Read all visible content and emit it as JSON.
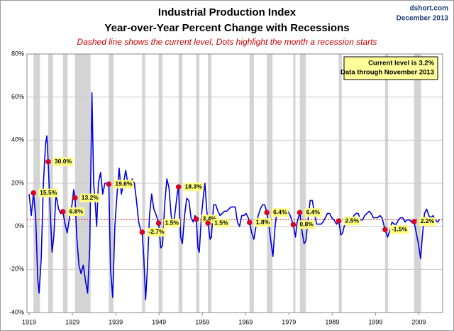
{
  "chart_data": {
    "type": "line",
    "title": "Industrial Production Index",
    "subtitle": "Year-over-Year Percent Change with Recessions",
    "note": "Dashed line shows the current level, Dots highlight the month a recession starts",
    "source": "dshort.com",
    "date": "December 2013",
    "info_box": [
      "Current level is 3.2%",
      "Data through November 2013"
    ],
    "color": "#0000e0",
    "current_level": 3.2,
    "current_level_color": "#e00000",
    "recession_color": "#d4d4d4",
    "dot_color": "#e0002a",
    "label_color": "#ffff80",
    "grid": true,
    "xlim": [
      1918.5,
      2014.5
    ],
    "xticks": [
      1919,
      1929,
      1939,
      1949,
      1959,
      1969,
      1979,
      1989,
      1999,
      2009
    ],
    "ylim": [
      -40,
      80
    ],
    "yticks": [
      {
        "value": -40,
        "label": "-40%"
      },
      {
        "value": -20,
        "label": "-20%"
      },
      {
        "value": 0,
        "label": "0%"
      },
      {
        "value": 20,
        "label": "20%"
      },
      {
        "value": 40,
        "label": "40%"
      },
      {
        "value": 60,
        "label": "60%"
      },
      {
        "value": 80,
        "label": "80%"
      }
    ],
    "recessions": [
      [
        1920.0,
        1921.5
      ],
      [
        1923.4,
        1924.5
      ],
      [
        1926.8,
        1927.9
      ],
      [
        1929.6,
        1933.2
      ],
      [
        1937.4,
        1938.5
      ],
      [
        1945.1,
        1945.8
      ],
      [
        1948.9,
        1949.8
      ],
      [
        1953.5,
        1954.4
      ],
      [
        1957.6,
        1958.3
      ],
      [
        1960.3,
        1961.1
      ],
      [
        1969.9,
        1970.9
      ],
      [
        1973.9,
        1975.2
      ],
      [
        1980.0,
        1980.5
      ],
      [
        1981.5,
        1982.9
      ],
      [
        1990.5,
        1991.2
      ],
      [
        2001.2,
        2001.9
      ],
      [
        2007.9,
        2009.5
      ]
    ],
    "recession_starts": {
      "x": [
        1920.0,
        1923.4,
        1926.8,
        1929.6,
        1937.4,
        1945.1,
        1948.9,
        1953.5,
        1957.6,
        1960.3,
        1969.9,
        1973.9,
        1980.0,
        1981.5,
        1990.5,
        2001.2,
        2007.9
      ],
      "values": [
        15.5,
        30.0,
        6.8,
        13.2,
        19.6,
        -2.7,
        1.5,
        18.3,
        3.4,
        1.5,
        1.8,
        6.4,
        0.8,
        6.4,
        2.5,
        -1.5,
        2.2
      ],
      "value_labels": [
        "15.5%",
        "30.0%",
        "6.8%",
        "13.2%",
        "19.6%",
        "-2.7%",
        "1.5%",
        "18.3%",
        "3.4%",
        "1.5%",
        "1.8%",
        "6.4%",
        "0.8%",
        "6.4%",
        "2.5%",
        "-1.5%",
        "2.2%"
      ]
    },
    "x": [
      1919.0,
      1919.5,
      1920.0,
      1920.5,
      1921.0,
      1921.3,
      1921.8,
      1922.3,
      1922.8,
      1923.1,
      1923.4,
      1923.8,
      1924.3,
      1924.7,
      1925.2,
      1925.8,
      1926.3,
      1926.8,
      1927.3,
      1927.8,
      1928.4,
      1928.9,
      1929.3,
      1929.6,
      1930.0,
      1930.5,
      1931.0,
      1931.5,
      1932.0,
      1932.5,
      1933.0,
      1933.5,
      1933.9,
      1934.3,
      1934.6,
      1935.0,
      1935.5,
      1936.0,
      1936.5,
      1937.0,
      1937.4,
      1937.8,
      1938.3,
      1938.8,
      1939.3,
      1939.8,
      1940.3,
      1940.8,
      1941.3,
      1941.8,
      1942.3,
      1942.8,
      1943.3,
      1943.8,
      1944.3,
      1944.8,
      1945.1,
      1945.5,
      1945.9,
      1946.3,
      1946.8,
      1947.3,
      1947.8,
      1948.4,
      1948.9,
      1949.4,
      1949.8,
      1950.3,
      1950.8,
      1951.3,
      1951.8,
      1952.3,
      1952.8,
      1953.2,
      1953.5,
      1954.0,
      1954.4,
      1954.9,
      1955.4,
      1955.9,
      1956.4,
      1956.9,
      1957.3,
      1957.6,
      1958.0,
      1958.3,
      1958.8,
      1959.3,
      1959.6,
      1960.0,
      1960.3,
      1960.8,
      1961.1,
      1961.6,
      1962.1,
      1962.6,
      1963.1,
      1963.6,
      1964.1,
      1964.6,
      1965.1,
      1965.6,
      1966.1,
      1966.6,
      1967.1,
      1967.6,
      1968.1,
      1968.6,
      1969.1,
      1969.6,
      1969.9,
      1970.4,
      1970.9,
      1971.4,
      1971.9,
      1972.4,
      1972.9,
      1973.4,
      1973.9,
      1974.4,
      1974.9,
      1975.3,
      1975.8,
      1976.3,
      1976.8,
      1977.3,
      1977.8,
      1978.3,
      1978.8,
      1979.3,
      1980.0,
      1980.5,
      1980.9,
      1981.5,
      1982.0,
      1982.5,
      1982.9,
      1983.4,
      1983.9,
      1984.4,
      1984.9,
      1985.4,
      1985.9,
      1986.4,
      1986.9,
      1987.4,
      1987.9,
      1988.4,
      1988.9,
      1989.4,
      1990.0,
      1990.5,
      1991.0,
      1991.4,
      1992.0,
      1992.5,
      1993.0,
      1993.5,
      1994.0,
      1994.5,
      1995.0,
      1995.5,
      1996.0,
      1996.5,
      1997.0,
      1997.5,
      1998.0,
      1998.5,
      1999.0,
      1999.5,
      2000.0,
      2000.5,
      2001.2,
      2001.8,
      2002.3,
      2002.8,
      2003.3,
      2003.8,
      2004.3,
      2004.8,
      2005.3,
      2005.8,
      2006.3,
      2006.8,
      2007.3,
      2007.9,
      2008.4,
      2008.9,
      2009.4,
      2009.8,
      2010.3,
      2010.8,
      2011.3,
      2011.8,
      2012.3,
      2012.8,
      2013.3,
      2013.8
    ],
    "values": [
      15,
      5,
      15.5,
      5,
      -25,
      -31,
      -15,
      20,
      38,
      42,
      30,
      10,
      -12,
      -5,
      15,
      8,
      6,
      6.8,
      1,
      -3,
      5,
      10,
      17,
      13.2,
      -5,
      -18,
      -22,
      -18,
      -25,
      -31,
      -10,
      62,
      20,
      10,
      0,
      20,
      25,
      15,
      20,
      20,
      19.6,
      -20,
      -33,
      0,
      15,
      27,
      15,
      20,
      26,
      20,
      18,
      22,
      20,
      12,
      2,
      -2,
      -2.7,
      -15,
      -34,
      -20,
      5,
      15,
      8,
      5,
      1.5,
      -10,
      -9,
      10,
      22,
      18,
      5,
      0,
      8,
      15,
      18.3,
      -5,
      -8,
      5,
      13,
      12,
      4,
      2,
      5,
      3.4,
      -10,
      -12,
      5,
      15,
      20,
      8,
      1.5,
      -6,
      -5,
      10,
      10,
      7,
      5,
      6,
      7,
      7,
      8,
      9,
      9,
      9,
      2,
      0,
      5,
      5,
      6,
      4,
      1.8,
      -3,
      -6,
      0,
      5,
      8,
      10,
      10,
      6.4,
      0,
      -8,
      -14,
      0,
      8,
      5,
      6,
      7,
      5,
      7,
      5,
      0.8,
      -5,
      2,
      6.4,
      -2,
      -8,
      -7,
      3,
      12,
      12,
      6,
      1,
      1,
      1,
      2,
      4,
      6,
      6,
      4,
      3,
      1,
      2.5,
      -4,
      -3,
      2,
      3,
      4,
      3,
      5,
      6,
      6,
      3,
      3,
      5,
      6,
      7,
      6,
      4,
      4,
      4,
      5,
      4,
      -1.5,
      -5,
      -2,
      2,
      1,
      1,
      3,
      4,
      4,
      2,
      3,
      3,
      2,
      2.2,
      -3,
      -8,
      -15,
      -5,
      6,
      8,
      5,
      4,
      5,
      3,
      2,
      3.2
    ]
  }
}
